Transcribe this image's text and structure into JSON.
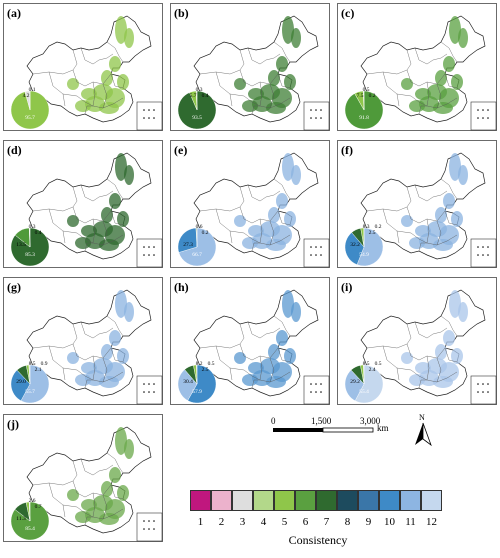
{
  "panels": [
    {
      "id": "a",
      "label": "(a)",
      "pie_colors": [
        "#8fc64a",
        "#e0e0e0",
        "#2f7a2f"
      ],
      "pie_labels": [
        "95.7",
        "4.2",
        "0.1"
      ],
      "pie_values": [
        95.7,
        4.2,
        0.1
      ],
      "mapcolor": "#8fc64a"
    },
    {
      "id": "b",
      "label": "(b)",
      "pie_colors": [
        "#2f6a2f",
        "#8fc64a",
        "#e0e0e0",
        "#5a9a3a"
      ],
      "pie_labels": [
        "93.5",
        "5.7",
        "0.3",
        "0.4"
      ],
      "pie_values": [
        93.5,
        5.7,
        0.3,
        0.4
      ],
      "mapcolor": "#3f7f35"
    },
    {
      "id": "c",
      "label": "(c)",
      "pie_colors": [
        "#4f9a3a",
        "#8fc64a",
        "#e0e0e0",
        "#2f6a2f"
      ],
      "pie_labels": [
        "91.8",
        "7.5",
        "0.5",
        "0.2"
      ],
      "pie_values": [
        91.8,
        7.5,
        0.5,
        0.2
      ],
      "mapcolor": "#5aa040"
    },
    {
      "id": "d",
      "label": "(d)",
      "pie_colors": [
        "#2f6a2f",
        "#4f9a3a",
        "#8fc64a",
        "#e0e0e0"
      ],
      "pie_labels": [
        "85.3",
        "13.5",
        "0.3",
        "0.4"
      ],
      "pie_values": [
        85.3,
        13.5,
        0.3,
        0.4
      ],
      "mapcolor": "#2f6a2f"
    },
    {
      "id": "e",
      "label": "(e)",
      "pie_colors": [
        "#9dbfe6",
        "#3e8ac7",
        "#2f6a2f",
        "#8fc64a"
      ],
      "pie_labels": [
        "66.7",
        "27.3",
        "0.6",
        "0.2"
      ],
      "pie_values": [
        66.7,
        27.3,
        0.6,
        0.2
      ],
      "mapcolor": "#8bb3e0"
    },
    {
      "id": "f",
      "label": "(f)",
      "pie_colors": [
        "#9dbfe6",
        "#3e8ac7",
        "#2f6a2f",
        "#8fc64a",
        "#e0e0e0"
      ],
      "pie_labels": [
        "54.9",
        "32.2",
        "8.3",
        "2.5",
        "0.2"
      ],
      "pie_values": [
        54.9,
        32.2,
        8.3,
        2.5,
        0.2
      ],
      "mapcolor": "#8bb3e0"
    },
    {
      "id": "g",
      "label": "(g)",
      "pie_colors": [
        "#9dbfe6",
        "#3e8ac7",
        "#2f6a2f",
        "#8fc64a",
        "#e0e0e0"
      ],
      "pie_labels": [
        "55.7",
        "29.0",
        "8.5",
        "2.1",
        "0.9"
      ],
      "pie_values": [
        55.7,
        29.0,
        8.5,
        2.1,
        0.9
      ],
      "mapcolor": "#8bb3e0"
    },
    {
      "id": "h",
      "label": "(h)",
      "pie_colors": [
        "#3e8ac7",
        "#9dbfe6",
        "#2f6a2f",
        "#8fc64a",
        "#e0e0e0"
      ],
      "pie_labels": [
        "57.9",
        "30.4",
        "8.2",
        "2.5",
        "0.5"
      ],
      "pie_values": [
        57.9,
        30.4,
        8.2,
        2.5,
        0.5
      ],
      "mapcolor": "#5a98d0"
    },
    {
      "id": "i",
      "label": "(i)",
      "pie_colors": [
        "#c5d8ee",
        "#9dbfe6",
        "#2f6a2f",
        "#8fc64a",
        "#e0e0e0"
      ],
      "pie_labels": [
        "55.4",
        "29.2",
        "8.5",
        "2.4",
        "0.5"
      ],
      "pie_values": [
        55.4,
        29.2,
        8.5,
        2.4,
        0.5
      ],
      "mapcolor": "#a9c6ea"
    },
    {
      "id": "j",
      "label": "(j)",
      "pie_colors": [
        "#5aa040",
        "#2f6a2f",
        "#8fc64a",
        "#e0e0e0"
      ],
      "pie_labels": [
        "85.4",
        "11.3",
        "2.6",
        "0.7"
      ],
      "pie_values": [
        85.4,
        11.3,
        2.6,
        0.7
      ],
      "mapcolor": "#6aa84a"
    }
  ],
  "scale": {
    "t0": "0",
    "t1": "1,500",
    "t2": "3,000",
    "unit": "km"
  },
  "north_label": "N",
  "legend": {
    "title": "Consistency",
    "classes": [
      "1",
      "2",
      "3",
      "4",
      "5",
      "6",
      "7",
      "8",
      "9",
      "10",
      "11",
      "12"
    ],
    "colors": [
      "#c0177e",
      "#ecb2cc",
      "#dedede",
      "#b3d88a",
      "#8fc64a",
      "#5aa040",
      "#2f6a2f",
      "#1d4b5e",
      "#3a76a8",
      "#3e8ac7",
      "#8db5e2",
      "#c5d8ee"
    ]
  }
}
